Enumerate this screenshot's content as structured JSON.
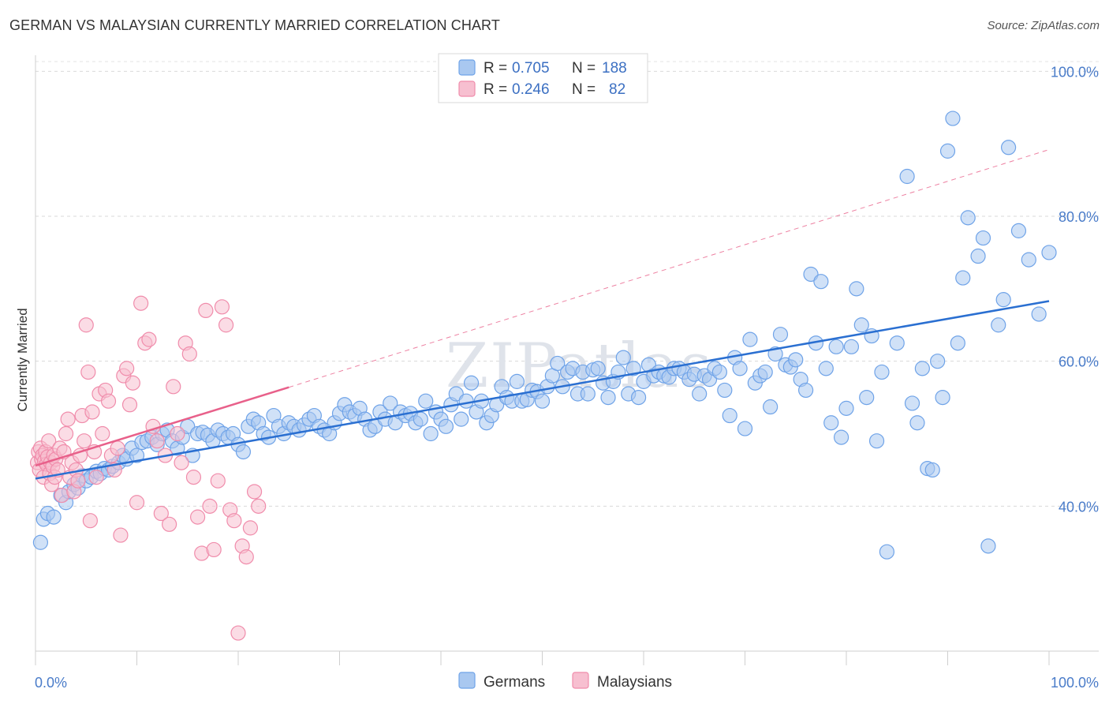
{
  "header": {
    "title": "GERMAN VS MALAYSIAN CURRENTLY MARRIED CORRELATION CHART",
    "source": "Source: ZipAtlas.com"
  },
  "chart_data": {
    "type": "scatter",
    "title": "GERMAN VS MALAYSIAN CURRENTLY MARRIED CORRELATION CHART",
    "xlabel": "",
    "ylabel": "Currently Married",
    "xlim": [
      0,
      100
    ],
    "ylim": [
      20,
      102
    ],
    "x_tick_labels": [
      "0.0%",
      "100.0%"
    ],
    "y_tick_labels": [
      "40.0%",
      "60.0%",
      "80.0%",
      "100.0%"
    ],
    "y_ticks": [
      40,
      60,
      80,
      100
    ],
    "watermark": "ZIPatlas",
    "legend": {
      "rows": [
        {
          "r_label": "R =",
          "r_value": "0.705",
          "n_label": "N =",
          "n_value": "188"
        },
        {
          "r_label": "R =",
          "r_value": "0.246",
          "n_label": "N =",
          "n_value": "82"
        }
      ]
    },
    "series": [
      {
        "name": "Germans",
        "color": "#6fa3e8",
        "fill": "#a9c8f0",
        "line_color": "#2a6fd1",
        "trend": {
          "x": [
            0,
            100
          ],
          "y": [
            43.8,
            68.3
          ]
        },
        "points": [
          [
            0.5,
            35
          ],
          [
            0.8,
            38.2
          ],
          [
            1.2,
            39
          ],
          [
            1.8,
            38.5
          ],
          [
            2.5,
            41.5
          ],
          [
            3,
            40.5
          ],
          [
            3.3,
            42
          ],
          [
            3.8,
            43
          ],
          [
            4.2,
            42.5
          ],
          [
            4.6,
            44.2
          ],
          [
            5,
            43.5
          ],
          [
            5.5,
            44
          ],
          [
            6,
            44.8
          ],
          [
            6.4,
            44.5
          ],
          [
            6.8,
            45.2
          ],
          [
            7.2,
            45
          ],
          [
            7.6,
            45.5
          ],
          [
            8.2,
            46
          ],
          [
            8.6,
            47
          ],
          [
            9,
            46.5
          ],
          [
            9.5,
            48
          ],
          [
            10,
            47
          ],
          [
            10.5,
            48.8
          ],
          [
            11,
            49
          ],
          [
            11.5,
            49.5
          ],
          [
            12,
            48.5
          ],
          [
            12.5,
            50
          ],
          [
            13,
            50.5
          ],
          [
            13.5,
            49
          ],
          [
            14,
            48
          ],
          [
            14.5,
            49.5
          ],
          [
            15,
            51
          ],
          [
            15.5,
            47
          ],
          [
            16,
            50
          ],
          [
            16.5,
            50.2
          ],
          [
            17,
            49.8
          ],
          [
            17.5,
            49
          ],
          [
            18,
            50.5
          ],
          [
            18.5,
            50
          ],
          [
            19,
            49.5
          ],
          [
            19.5,
            50
          ],
          [
            20,
            48.5
          ],
          [
            20.5,
            47.5
          ],
          [
            21,
            51
          ],
          [
            21.5,
            52
          ],
          [
            22,
            51.5
          ],
          [
            22.5,
            50
          ],
          [
            23,
            49.5
          ],
          [
            23.5,
            52.5
          ],
          [
            24,
            51
          ],
          [
            24.5,
            50
          ],
          [
            25,
            51.5
          ],
          [
            25.5,
            51
          ],
          [
            26,
            50.5
          ],
          [
            26.5,
            51.2
          ],
          [
            27,
            52
          ],
          [
            27.5,
            52.5
          ],
          [
            28,
            51
          ],
          [
            28.5,
            50.5
          ],
          [
            29,
            50
          ],
          [
            29.5,
            51.5
          ],
          [
            30,
            52.8
          ],
          [
            30.5,
            54
          ],
          [
            31,
            53
          ],
          [
            31.5,
            52.5
          ],
          [
            32,
            53.5
          ],
          [
            32.5,
            52
          ],
          [
            33,
            50.5
          ],
          [
            33.5,
            51
          ],
          [
            34,
            53
          ],
          [
            34.5,
            52
          ],
          [
            35,
            54.2
          ],
          [
            35.5,
            51.5
          ],
          [
            36,
            53
          ],
          [
            36.5,
            52.5
          ],
          [
            37,
            52.8
          ],
          [
            37.5,
            51.5
          ],
          [
            38,
            52
          ],
          [
            38.5,
            54.5
          ],
          [
            39,
            50
          ],
          [
            39.5,
            53
          ],
          [
            40,
            52
          ],
          [
            40.5,
            51
          ],
          [
            41,
            54
          ],
          [
            41.5,
            55.5
          ],
          [
            42,
            52
          ],
          [
            42.5,
            54.5
          ],
          [
            43,
            57
          ],
          [
            43.5,
            53
          ],
          [
            44,
            54.5
          ],
          [
            44.5,
            51.5
          ],
          [
            45,
            52.5
          ],
          [
            45.5,
            54
          ],
          [
            46,
            56.5
          ],
          [
            46.5,
            55
          ],
          [
            47,
            54.5
          ],
          [
            47.5,
            57.2
          ],
          [
            48,
            54.5
          ],
          [
            48.5,
            54.7
          ],
          [
            49,
            56
          ],
          [
            49.5,
            55.8
          ],
          [
            50,
            54.5
          ],
          [
            50.5,
            56.5
          ],
          [
            51,
            58
          ],
          [
            51.5,
            59.7
          ],
          [
            52,
            56.5
          ],
          [
            52.5,
            58.5
          ],
          [
            53,
            59
          ],
          [
            53.5,
            55.5
          ],
          [
            54,
            58.5
          ],
          [
            54.5,
            55.5
          ],
          [
            55,
            58.8
          ],
          [
            55.5,
            59
          ],
          [
            56,
            57
          ],
          [
            56.5,
            55
          ],
          [
            57,
            57.2
          ],
          [
            57.5,
            58.5
          ],
          [
            58,
            60.5
          ],
          [
            58.5,
            55.5
          ],
          [
            59,
            59
          ],
          [
            59.5,
            55
          ],
          [
            60,
            57.2
          ],
          [
            60.5,
            59.5
          ],
          [
            61,
            58
          ],
          [
            61.5,
            58.5
          ],
          [
            62,
            58
          ],
          [
            62.5,
            57.8
          ],
          [
            63,
            59
          ],
          [
            63.5,
            59
          ],
          [
            64,
            58.5
          ],
          [
            64.5,
            57.5
          ],
          [
            65,
            58.2
          ],
          [
            65.5,
            55.5
          ],
          [
            66,
            58
          ],
          [
            66.5,
            57.5
          ],
          [
            67,
            59
          ],
          [
            67.5,
            58.5
          ],
          [
            68,
            56
          ],
          [
            68.5,
            52.5
          ],
          [
            69,
            60.5
          ],
          [
            69.5,
            59
          ],
          [
            70,
            50.7
          ],
          [
            70.5,
            63
          ],
          [
            71,
            57
          ],
          [
            71.5,
            58
          ],
          [
            72,
            58.5
          ],
          [
            72.5,
            53.7
          ],
          [
            73,
            61
          ],
          [
            73.5,
            63.7
          ],
          [
            74,
            59.5
          ],
          [
            74.5,
            59.2
          ],
          [
            75,
            60.2
          ],
          [
            75.5,
            57.5
          ],
          [
            76,
            56
          ],
          [
            76.5,
            72
          ],
          [
            77,
            62.5
          ],
          [
            77.5,
            71
          ],
          [
            78,
            59
          ],
          [
            78.5,
            51.5
          ],
          [
            79,
            62
          ],
          [
            79.5,
            49.5
          ],
          [
            80,
            53.5
          ],
          [
            80.5,
            62
          ],
          [
            81,
            70
          ],
          [
            81.5,
            65
          ],
          [
            82,
            55
          ],
          [
            82.5,
            63.5
          ],
          [
            83,
            49
          ],
          [
            83.5,
            58.5
          ],
          [
            84,
            33.7
          ],
          [
            85,
            62.5
          ],
          [
            86,
            85.5
          ],
          [
            86.5,
            54.2
          ],
          [
            87,
            51.5
          ],
          [
            87.5,
            59
          ],
          [
            88,
            45.2
          ],
          [
            88.5,
            45
          ],
          [
            89,
            60
          ],
          [
            89.5,
            55
          ],
          [
            90,
            89
          ],
          [
            90.5,
            93.5
          ],
          [
            91,
            62.5
          ],
          [
            91.5,
            71.5
          ],
          [
            92,
            79.8
          ],
          [
            93,
            74.5
          ],
          [
            93.5,
            77
          ],
          [
            94,
            34.5
          ],
          [
            95,
            65
          ],
          [
            95.5,
            68.5
          ],
          [
            96,
            89.5
          ],
          [
            97,
            78
          ],
          [
            98,
            74
          ],
          [
            99,
            66.5
          ],
          [
            100,
            75
          ]
        ]
      },
      {
        "name": "Malaysians",
        "color": "#f08cab",
        "fill": "#f7bfd0",
        "line_color": "#e8608a",
        "trend": {
          "x": [
            0,
            25
          ],
          "y": [
            45.6,
            56.4
          ]
        },
        "trend_ext": {
          "x": [
            25,
            100
          ],
          "y": [
            56.4,
            89.2
          ]
        },
        "points": [
          [
            0.2,
            46
          ],
          [
            0.3,
            47.5
          ],
          [
            0.4,
            45
          ],
          [
            0.5,
            48
          ],
          [
            0.6,
            46.5
          ],
          [
            0.7,
            47
          ],
          [
            0.8,
            44
          ],
          [
            0.9,
            46.2
          ],
          [
            1,
            47.5
          ],
          [
            1.1,
            45.8
          ],
          [
            1.2,
            46.8
          ],
          [
            1.3,
            49
          ],
          [
            1.4,
            44.5
          ],
          [
            1.5,
            46
          ],
          [
            1.6,
            43
          ],
          [
            1.7,
            45.5
          ],
          [
            1.8,
            47
          ],
          [
            1.9,
            44
          ],
          [
            2,
            46.5
          ],
          [
            2.2,
            45
          ],
          [
            2.4,
            48
          ],
          [
            2.6,
            41.5
          ],
          [
            2.8,
            47.5
          ],
          [
            3,
            50
          ],
          [
            3.2,
            52
          ],
          [
            3.4,
            44
          ],
          [
            3.6,
            46
          ],
          [
            3.8,
            42
          ],
          [
            4,
            45
          ],
          [
            4.2,
            43.5
          ],
          [
            4.4,
            47
          ],
          [
            4.6,
            52.5
          ],
          [
            4.8,
            49
          ],
          [
            5,
            65
          ],
          [
            5.2,
            58.5
          ],
          [
            5.4,
            38
          ],
          [
            5.6,
            53
          ],
          [
            5.8,
            47.5
          ],
          [
            6,
            44
          ],
          [
            6.3,
            55.5
          ],
          [
            6.6,
            50
          ],
          [
            6.9,
            56
          ],
          [
            7.2,
            54.5
          ],
          [
            7.5,
            47
          ],
          [
            7.8,
            45
          ],
          [
            8.1,
            48
          ],
          [
            8.4,
            36
          ],
          [
            8.7,
            58
          ],
          [
            9,
            59
          ],
          [
            9.3,
            54
          ],
          [
            9.6,
            57
          ],
          [
            10,
            40.5
          ],
          [
            10.4,
            68
          ],
          [
            10.8,
            62.5
          ],
          [
            11.2,
            63
          ],
          [
            11.6,
            51
          ],
          [
            12,
            49
          ],
          [
            12.4,
            39
          ],
          [
            12.8,
            47
          ],
          [
            13.2,
            37.5
          ],
          [
            13.6,
            56.5
          ],
          [
            14,
            50
          ],
          [
            14.4,
            46
          ],
          [
            14.8,
            62.5
          ],
          [
            15.2,
            61
          ],
          [
            15.6,
            44
          ],
          [
            16,
            38.5
          ],
          [
            16.4,
            33.5
          ],
          [
            16.8,
            67
          ],
          [
            17.2,
            40
          ],
          [
            17.6,
            34
          ],
          [
            18,
            43.5
          ],
          [
            18.4,
            67.5
          ],
          [
            18.8,
            65
          ],
          [
            19.2,
            39.5
          ],
          [
            19.6,
            38
          ],
          [
            20,
            22.5
          ],
          [
            20.4,
            34.5
          ],
          [
            20.8,
            33
          ],
          [
            21.2,
            37
          ],
          [
            21.6,
            42
          ],
          [
            22,
            40
          ]
        ]
      }
    ]
  },
  "bottom_legend": {
    "items": [
      {
        "label": "Germans"
      },
      {
        "label": "Malaysians"
      }
    ]
  }
}
